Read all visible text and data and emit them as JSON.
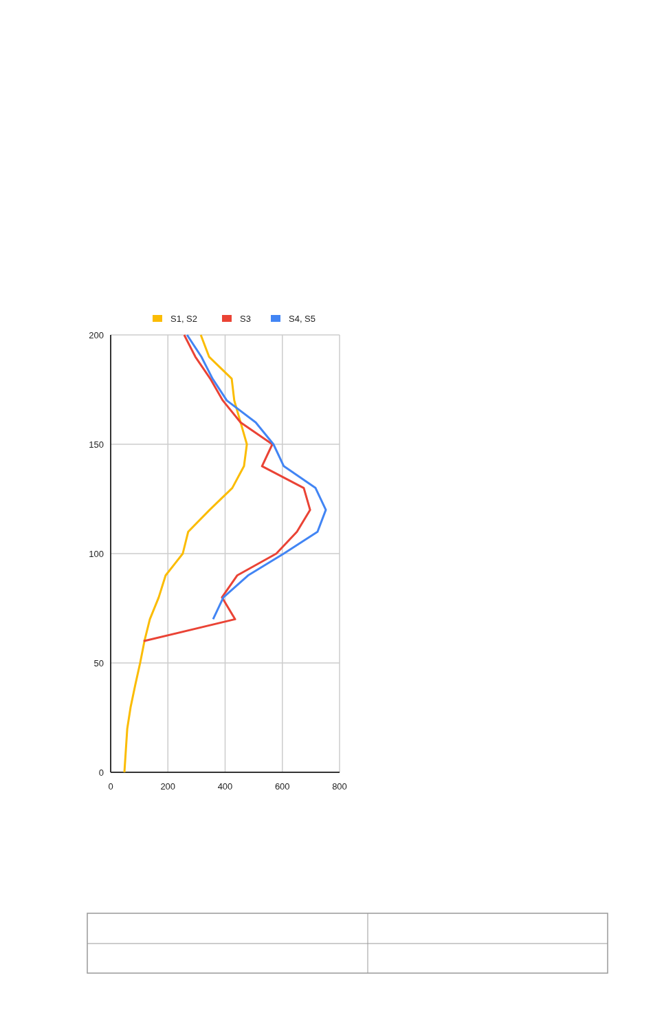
{
  "chart_data": {
    "type": "line",
    "xlim": [
      0,
      800
    ],
    "xticks": [
      0,
      200,
      400,
      600,
      800
    ],
    "ylim": [
      0,
      200
    ],
    "yticks": [
      0,
      50,
      100,
      150,
      200
    ],
    "grid": true,
    "legend": "top",
    "line_style": "solid",
    "marker": "none",
    "series": [
      {
        "name": "S1, S2",
        "color": "#fbbc04",
        "x": [
          315,
          344,
          423,
          432,
          454,
          476,
          466,
          425,
          346,
          271,
          252,
          192,
          168,
          137,
          118,
          103,
          86,
          70,
          58,
          53,
          48
        ],
        "values": [
          200,
          190,
          180,
          170,
          160,
          150,
          140,
          130,
          120,
          110,
          100,
          90,
          80,
          70,
          60,
          50,
          40,
          30,
          20,
          10,
          0
        ]
      },
      {
        "name": "S3",
        "color": "#ea4335",
        "x": [
          257,
          296,
          348,
          392,
          454,
          565,
          529,
          675,
          697,
          651,
          579,
          442,
          389,
          435,
          115
        ],
        "values": [
          200,
          190,
          180,
          170,
          160,
          150,
          140,
          130,
          120,
          110,
          100,
          90,
          80,
          70,
          60
        ]
      },
      {
        "name": "S4, S5",
        "color": "#4285f4",
        "x": [
          267,
          317,
          356,
          406,
          507,
          569,
          605,
          716,
          752,
          723,
          605,
          480,
          394,
          358
        ],
        "values": [
          200,
          190,
          180,
          170,
          160,
          150,
          140,
          130,
          120,
          110,
          100,
          90,
          80,
          70
        ]
      }
    ]
  }
}
